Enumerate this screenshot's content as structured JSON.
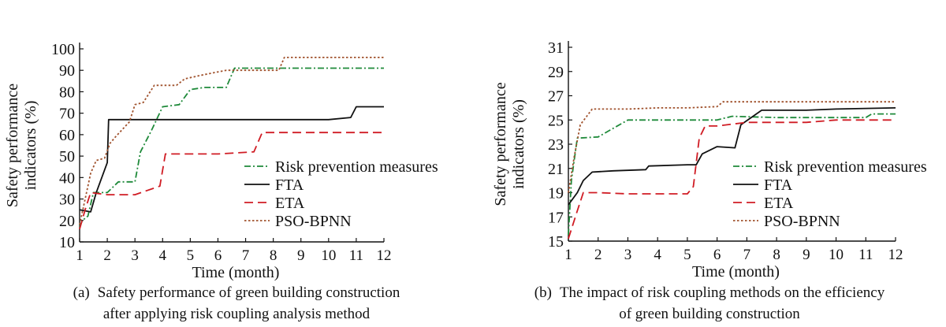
{
  "chart_data": [
    {
      "type": "line",
      "id": "a",
      "caption_label": "(a)",
      "caption_lines": [
        "Safety performance of green building construction",
        "after applying risk coupling analysis method"
      ],
      "xlabel": "Time (month)",
      "ylabel_lines": [
        "Safety performance",
        "indicators (%)"
      ],
      "xlim": [
        1,
        12
      ],
      "ylim": [
        10,
        100
      ],
      "xticks": [
        1,
        2,
        3,
        4,
        5,
        6,
        7,
        8,
        9,
        10,
        11,
        12
      ],
      "yticks": [
        10,
        20,
        30,
        40,
        50,
        60,
        70,
        80,
        90,
        100
      ],
      "grid": false,
      "legend_position": "bottom-right",
      "series": [
        {
          "name": "Risk prevention measures",
          "color": "#1f8a3a",
          "dash": "dashdot",
          "points": [
            [
              1,
              17
            ],
            [
              1.1,
              20
            ],
            [
              1.3,
              22
            ],
            [
              1.5,
              33
            ],
            [
              2,
              33
            ],
            [
              2.4,
              38
            ],
            [
              3,
              38
            ],
            [
              3.2,
              52
            ],
            [
              3.6,
              62
            ],
            [
              4,
              73
            ],
            [
              4.6,
              74
            ],
            [
              5,
              81
            ],
            [
              5.5,
              82
            ],
            [
              6.3,
              82
            ],
            [
              6.6,
              91
            ],
            [
              7,
              91
            ],
            [
              8,
              91
            ],
            [
              9,
              91
            ],
            [
              10,
              91
            ],
            [
              11,
              91
            ],
            [
              12,
              91
            ]
          ]
        },
        {
          "name": "FTA",
          "color": "#111111",
          "dash": "solid",
          "points": [
            [
              1,
              25
            ],
            [
              1.4,
              24
            ],
            [
              1.6,
              33
            ],
            [
              2,
              47
            ],
            [
              2.05,
              67
            ],
            [
              3,
              67
            ],
            [
              4,
              67
            ],
            [
              5,
              67
            ],
            [
              6,
              67
            ],
            [
              7,
              67
            ],
            [
              8,
              67
            ],
            [
              9,
              67
            ],
            [
              10,
              67
            ],
            [
              10.8,
              68
            ],
            [
              11,
              73
            ],
            [
              12,
              73
            ]
          ]
        },
        {
          "name": "ETA",
          "color": "#d01c24",
          "dash": "dashed",
          "points": [
            [
              1,
              16
            ],
            [
              1.2,
              25
            ],
            [
              1.4,
              33
            ],
            [
              2,
              32
            ],
            [
              3,
              32
            ],
            [
              3.9,
              36
            ],
            [
              4.1,
              51
            ],
            [
              5,
              51
            ],
            [
              6,
              51
            ],
            [
              7.3,
              52
            ],
            [
              7.6,
              61
            ],
            [
              8,
              61
            ],
            [
              9,
              61
            ],
            [
              10,
              61
            ],
            [
              11,
              61
            ],
            [
              12,
              61
            ]
          ]
        },
        {
          "name": "PSO-BPNN",
          "color": "#a0522d",
          "dash": "dotted",
          "points": [
            [
              1,
              18
            ],
            [
              1.2,
              30
            ],
            [
              1.4,
              42
            ],
            [
              1.6,
              48
            ],
            [
              1.9,
              49
            ],
            [
              2.1,
              56
            ],
            [
              2.3,
              59
            ],
            [
              2.8,
              66
            ],
            [
              3,
              74
            ],
            [
              3.3,
              75
            ],
            [
              3.7,
              83
            ],
            [
              4.5,
              83
            ],
            [
              4.8,
              86
            ],
            [
              5.5,
              88
            ],
            [
              6.3,
              90
            ],
            [
              6.8,
              90
            ],
            [
              7.5,
              90
            ],
            [
              8.2,
              90
            ],
            [
              8.4,
              96
            ],
            [
              9,
              96
            ],
            [
              10,
              96
            ],
            [
              11,
              96
            ],
            [
              12,
              96
            ]
          ]
        }
      ]
    },
    {
      "type": "line",
      "id": "b",
      "caption_label": "(b)",
      "caption_lines": [
        "The impact of risk coupling methods on the efficiency",
        "of green building construction"
      ],
      "xlabel": "Time (month)",
      "ylabel_lines": [
        "Safety performance",
        "indicators (%)"
      ],
      "xlim": [
        1,
        12
      ],
      "ylim": [
        15,
        31
      ],
      "xticks": [
        1,
        2,
        3,
        4,
        5,
        6,
        7,
        8,
        9,
        10,
        11,
        12
      ],
      "yticks": [
        15,
        17,
        19,
        21,
        23,
        25,
        27,
        29,
        31
      ],
      "grid": false,
      "legend_position": "bottom-right",
      "series": [
        {
          "name": "Risk prevention measures",
          "color": "#1f8a3a",
          "dash": "dashdot",
          "points": [
            [
              1,
              15.5
            ],
            [
              1.1,
              20
            ],
            [
              1.3,
              23.5
            ],
            [
              2,
              23.6
            ],
            [
              2.5,
              24.3
            ],
            [
              3,
              25
            ],
            [
              4,
              25
            ],
            [
              5,
              25
            ],
            [
              6,
              25
            ],
            [
              6.5,
              25.3
            ],
            [
              8,
              25.2
            ],
            [
              9,
              25.2
            ],
            [
              10,
              25.2
            ],
            [
              11,
              25.2
            ],
            [
              11.2,
              25.5
            ],
            [
              12,
              25.5
            ]
          ]
        },
        {
          "name": "FTA",
          "color": "#111111",
          "dash": "solid",
          "points": [
            [
              1,
              18
            ],
            [
              1.3,
              19
            ],
            [
              1.5,
              20
            ],
            [
              1.8,
              20.7
            ],
            [
              2.5,
              20.8
            ],
            [
              3.6,
              20.9
            ],
            [
              3.7,
              21.2
            ],
            [
              5,
              21.3
            ],
            [
              5.3,
              21.3
            ],
            [
              5.5,
              22.2
            ],
            [
              6,
              22.8
            ],
            [
              6.6,
              22.7
            ],
            [
              6.8,
              24.6
            ],
            [
              7.5,
              25.8
            ],
            [
              8,
              25.8
            ],
            [
              9,
              25.8
            ],
            [
              10,
              25.9
            ],
            [
              12,
              26
            ]
          ]
        },
        {
          "name": "ETA",
          "color": "#d01c24",
          "dash": "dashed",
          "points": [
            [
              1,
              15.2
            ],
            [
              1.3,
              17.5
            ],
            [
              1.5,
              19
            ],
            [
              2,
              19
            ],
            [
              3,
              18.9
            ],
            [
              5,
              18.9
            ],
            [
              5.2,
              19.5
            ],
            [
              5.4,
              23.5
            ],
            [
              5.6,
              24.5
            ],
            [
              6,
              24.5
            ],
            [
              7,
              24.8
            ],
            [
              8,
              24.8
            ],
            [
              9,
              24.8
            ],
            [
              10,
              25
            ],
            [
              11,
              25
            ],
            [
              12,
              25
            ]
          ]
        },
        {
          "name": "PSO-BPNN",
          "color": "#a0522d",
          "dash": "dotted",
          "points": [
            [
              1,
              19
            ],
            [
              1.2,
              22
            ],
            [
              1.4,
              24.6
            ],
            [
              1.8,
              25.9
            ],
            [
              3,
              25.9
            ],
            [
              4,
              26
            ],
            [
              5,
              26
            ],
            [
              6,
              26.1
            ],
            [
              6.2,
              26.5
            ],
            [
              7,
              26.5
            ],
            [
              8,
              26.5
            ],
            [
              9,
              26.5
            ],
            [
              10,
              26.5
            ],
            [
              11,
              26.5
            ],
            [
              12,
              26.5
            ]
          ]
        }
      ]
    }
  ]
}
